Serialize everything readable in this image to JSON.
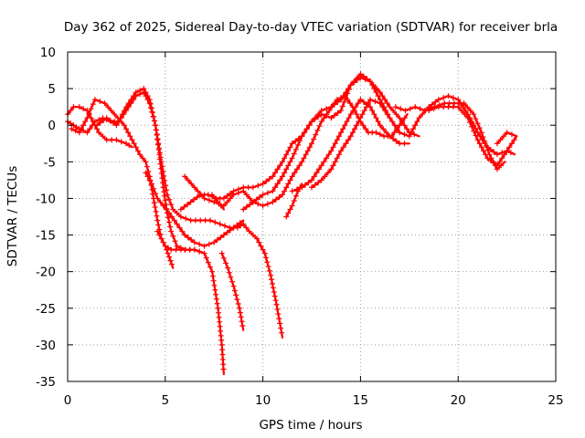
{
  "chart_data": {
    "type": "line",
    "title": "Day 362 of 2025, Sidereal Day-to-day VTEC variation (SDTVAR) for receiver brla",
    "xlabel": "GPS time / hours",
    "ylabel": "SDTVAR / TECUs",
    "xlim": [
      0,
      25
    ],
    "ylim": [
      -35,
      10
    ],
    "xticks": [
      0,
      5,
      10,
      15,
      20,
      25
    ],
    "yticks": [
      -35,
      -30,
      -25,
      -20,
      -15,
      -10,
      -5,
      0,
      5,
      10
    ],
    "grid": true,
    "marker": "+",
    "color": "#ff0000",
    "series": [
      {
        "name": "arc-1",
        "x": [
          0.0,
          0.3,
          0.6,
          1.0,
          1.4,
          1.8,
          2.2,
          2.6,
          3.0,
          3.5,
          3.9,
          4.2,
          4.5,
          4.7,
          4.9,
          5.1,
          5.3,
          5.6,
          6.0,
          6.5,
          7.0,
          7.4,
          7.7,
          7.9,
          8.0
        ],
        "y": [
          0.5,
          0.0,
          -0.5,
          -1.0,
          0.5,
          1.0,
          0.5,
          0.5,
          2.5,
          4.5,
          5.0,
          3.5,
          0.0,
          -4.0,
          -8.5,
          -12.0,
          -14.5,
          -16.5,
          -17.0,
          -17.0,
          -17.5,
          -20.0,
          -25.0,
          -30.0,
          -34.0
        ]
      },
      {
        "name": "arc-2",
        "x": [
          0.0,
          0.3,
          0.6,
          1.0,
          1.3,
          1.6,
          2.0,
          2.5,
          3.0,
          3.3
        ],
        "y": [
          1.5,
          2.5,
          2.5,
          2.0,
          0.5,
          -1.0,
          -2.0,
          -2.0,
          -2.5,
          -3.0
        ]
      },
      {
        "name": "arc-3",
        "x": [
          0.2,
          0.6,
          1.0,
          1.4,
          1.9,
          2.4,
          2.9,
          3.3,
          3.7,
          4.0,
          4.2,
          4.4,
          4.6,
          4.8,
          5.0,
          5.3,
          5.8,
          6.5,
          7.0
        ],
        "y": [
          -0.5,
          -1.0,
          1.0,
          3.5,
          3.0,
          1.5,
          0.0,
          -2.0,
          -4.0,
          -5.0,
          -7.0,
          -10.0,
          -13.0,
          -15.5,
          -16.5,
          -17.0,
          -17.0,
          -17.0,
          -17.5
        ]
      },
      {
        "name": "arc-4",
        "x": [
          1.5,
          2.0,
          2.5,
          3.0,
          3.5,
          3.9,
          4.2,
          4.5,
          4.8,
          5.1,
          5.4,
          5.8,
          6.3,
          6.8,
          7.3,
          7.8,
          8.3,
          8.7,
          9.0,
          9.3,
          9.7,
          10.1,
          10.4,
          10.7,
          11.0
        ],
        "y": [
          0.0,
          1.0,
          0.0,
          2.0,
          4.0,
          4.5,
          3.0,
          0.0,
          -5.0,
          -9.5,
          -11.5,
          -12.5,
          -13.0,
          -13.0,
          -13.0,
          -13.5,
          -14.0,
          -14.0,
          -13.5,
          -14.5,
          -15.5,
          -17.5,
          -20.5,
          -24.5,
          -29.0
        ]
      },
      {
        "name": "arc-5",
        "x": [
          4.0,
          4.3,
          4.6,
          4.9,
          5.2,
          5.6,
          6.0,
          6.5,
          7.0,
          7.5,
          8.0,
          8.5,
          9.0
        ],
        "y": [
          -6.5,
          -8.0,
          -10.0,
          -11.0,
          -12.0,
          -13.5,
          -15.0,
          -16.0,
          -16.5,
          -16.0,
          -15.0,
          -14.0,
          -13.0
        ]
      },
      {
        "name": "arc-6",
        "x": [
          7.9,
          8.2,
          8.5,
          8.8,
          9.0
        ],
        "y": [
          -17.5,
          -19.5,
          -22.0,
          -25.0,
          -28.0
        ]
      },
      {
        "name": "arc-7",
        "x": [
          4.6,
          4.8,
          5.0,
          5.2,
          5.4
        ],
        "y": [
          -14.5,
          -15.5,
          -16.5,
          -18.0,
          -19.5
        ]
      },
      {
        "name": "arc-8",
        "x": [
          6.0,
          6.5,
          7.0,
          7.5,
          8.0,
          8.5,
          9.0,
          9.5,
          10.0,
          10.5,
          11.0,
          11.5,
          12.0,
          12.5,
          13.0,
          13.4,
          13.8,
          14.2,
          14.6,
          15.0,
          15.4,
          15.8,
          16.2,
          16.6,
          17.0,
          17.4
        ],
        "y": [
          -7.0,
          -8.5,
          -10.0,
          -10.5,
          -11.0,
          -9.5,
          -9.0,
          -10.5,
          -11.0,
          -10.5,
          -9.5,
          -7.0,
          -5.0,
          -2.5,
          0.5,
          2.0,
          3.5,
          4.0,
          2.5,
          0.5,
          -1.0,
          -1.0,
          -1.5,
          -1.5,
          0.0,
          1.5
        ]
      },
      {
        "name": "arc-9",
        "x": [
          5.8,
          6.3,
          6.8,
          7.2,
          7.6,
          8.0,
          8.5,
          9.0,
          9.5,
          10.0,
          10.5,
          11.0,
          11.5,
          12.0,
          12.5,
          13.0,
          13.5,
          14.0,
          14.5,
          15.0,
          15.5,
          16.0,
          16.5
        ],
        "y": [
          -11.5,
          -10.5,
          -9.5,
          -9.5,
          -10.0,
          -10.0,
          -9.0,
          -8.5,
          -8.5,
          -8.0,
          -7.0,
          -5.0,
          -2.5,
          -1.5,
          0.5,
          1.5,
          1.0,
          2.0,
          5.5,
          7.0,
          6.0,
          3.5,
          1.0
        ]
      },
      {
        "name": "arc-10",
        "x": [
          7.4,
          7.7,
          8.0
        ],
        "y": [
          -9.5,
          -10.5,
          -11.5
        ]
      },
      {
        "name": "arc-11",
        "x": [
          9.0,
          9.5,
          10.0,
          10.5,
          11.0,
          11.5,
          12.0,
          12.5,
          13.0,
          13.5,
          14.0,
          14.5,
          15.0,
          15.5,
          16.0,
          16.5,
          17.0,
          17.5,
          18.0
        ],
        "y": [
          -11.5,
          -10.5,
          -9.5,
          -9.0,
          -7.0,
          -4.5,
          -1.5,
          0.5,
          2.0,
          2.5,
          3.5,
          5.5,
          6.5,
          6.0,
          4.5,
          2.5,
          1.0,
          -1.0,
          -1.5
        ]
      },
      {
        "name": "arc-12",
        "x": [
          11.5,
          12.0,
          12.5,
          13.0,
          13.5,
          14.0,
          14.5,
          15.0,
          15.5,
          16.0,
          16.5,
          17.0,
          17.5
        ],
        "y": [
          -9.0,
          -8.5,
          -7.5,
          -5.5,
          -3.5,
          -1.0,
          1.5,
          3.5,
          2.5,
          0.0,
          -1.5,
          -2.5,
          -2.5
        ]
      },
      {
        "name": "arc-13",
        "x": [
          11.2,
          11.5,
          11.8,
          12.0
        ],
        "y": [
          -12.5,
          -11.0,
          -9.0,
          -8.0
        ]
      },
      {
        "name": "arc-14",
        "x": [
          12.5,
          13.0,
          13.5,
          14.0,
          14.5,
          15.0,
          15.5,
          16.0,
          16.5,
          17.0,
          17.5,
          18.0,
          18.5,
          19.0,
          19.5,
          20.0,
          20.5,
          21.0,
          21.5,
          22.0,
          22.5,
          22.9
        ],
        "y": [
          -8.5,
          -7.5,
          -6.0,
          -3.5,
          -1.5,
          1.0,
          3.5,
          3.0,
          1.0,
          -1.0,
          -1.5,
          1.0,
          2.5,
          3.5,
          4.0,
          3.5,
          1.5,
          -1.0,
          -3.0,
          -4.0,
          -3.5,
          -4.0
        ]
      },
      {
        "name": "arc-15",
        "x": [
          16.8,
          17.3,
          17.8,
          18.3,
          18.8,
          19.3,
          19.8,
          20.3,
          20.8,
          21.2,
          21.6,
          22.0,
          22.4
        ],
        "y": [
          2.5,
          2.0,
          2.5,
          2.0,
          2.5,
          3.0,
          3.0,
          3.0,
          1.5,
          -1.0,
          -4.0,
          -6.0,
          -5.0
        ]
      },
      {
        "name": "arc-16",
        "x": [
          18.5,
          19.0,
          19.5,
          20.0,
          20.5,
          21.0,
          21.5,
          22.0,
          22.5,
          23.0
        ],
        "y": [
          2.0,
          2.5,
          2.5,
          2.5,
          1.0,
          -2.0,
          -4.5,
          -5.5,
          -3.5,
          -1.5
        ]
      },
      {
        "name": "arc-17",
        "x": [
          22.0,
          22.5,
          23.0
        ],
        "y": [
          -2.5,
          -1.0,
          -1.5
        ]
      }
    ]
  }
}
